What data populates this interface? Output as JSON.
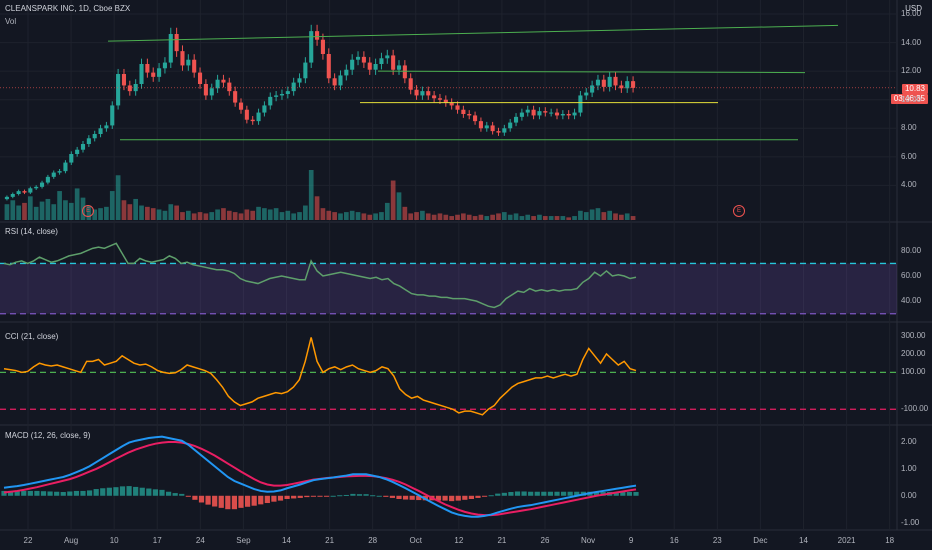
{
  "header": {
    "symbol": "CLEANSPARK INC, 1D, Cboe BZX",
    "vol": "Vol",
    "currency": "USD",
    "price_tag": "10.83",
    "time_tag": "03:46:35"
  },
  "panes": {
    "rsi_title": "RSI (14, close)",
    "cci_title": "CCI (21, close)",
    "macd_title": "MACD (12, 26, close, 9)"
  },
  "markers": {
    "earnings1": "E",
    "earnings2": "E"
  },
  "colors": {
    "background": "#131722",
    "up": "#26a69a",
    "down": "#ef5350",
    "support": "#4caf50",
    "yellow_line": "#e5e03a",
    "rsi": "#5e9f6b",
    "rsi_band": "#7e57c2",
    "rsi_upper": "#26c6da",
    "cci": "#ff9800",
    "cci_upper": "#4caf50",
    "cci_lower": "#e91e63",
    "macd": "#2196f3",
    "signal": "#e91e63"
  },
  "chart_data": [
    {
      "type": "candlestick",
      "title": "CLEANSPARK INC, 1D, Cboe BZX",
      "y_ticks": [
        "4.00",
        "6.00",
        "8.00",
        "10.00",
        "12.00",
        "14.00",
        "16.00"
      ],
      "ylim": [
        2,
        16
      ],
      "x_ticks": [
        "22",
        "Aug",
        "10",
        "17",
        "24",
        "Sep",
        "14",
        "21",
        "28",
        "Oct",
        "12",
        "21",
        "26",
        "Nov",
        "9",
        "16",
        "23",
        "Dec",
        "14",
        "2021",
        "18"
      ],
      "last_price": 10.83,
      "close": [
        3.2,
        3.4,
        3.6,
        3.5,
        3.8,
        3.9,
        4.2,
        4.6,
        4.9,
        5.0,
        5.6,
        6.2,
        6.5,
        6.9,
        7.3,
        7.6,
        8.0,
        8.2,
        9.6,
        11.8,
        11.0,
        10.6,
        11.1,
        12.5,
        11.9,
        11.6,
        12.2,
        12.6,
        14.6,
        13.4,
        12.4,
        12.8,
        11.9,
        11.1,
        10.3,
        10.8,
        11.4,
        11.2,
        10.6,
        9.8,
        9.3,
        8.6,
        8.5,
        9.1,
        9.6,
        10.2,
        10.3,
        10.4,
        10.6,
        11.2,
        11.5,
        12.6,
        14.8,
        14.2,
        13.2,
        11.5,
        11.0,
        11.7,
        12.1,
        12.8,
        13.0,
        12.6,
        12.1,
        12.5,
        12.9,
        13.1,
        12.1,
        12.4,
        11.5,
        10.7,
        10.3,
        10.6,
        10.3,
        10.1,
        10.0,
        9.8,
        9.6,
        9.3,
        9.0,
        8.9,
        8.5,
        8.0,
        8.2,
        7.8,
        7.7,
        8.0,
        8.4,
        8.8,
        9.1,
        9.3,
        8.9,
        9.2,
        9.1,
        9.1,
        8.9,
        9.0,
        8.9,
        9.1,
        10.3,
        10.5,
        11.0,
        11.4,
        10.9,
        11.6,
        11.0,
        10.8,
        11.3,
        10.83
      ],
      "volume": [
        1.2,
        1.5,
        1.1,
        1.3,
        1.8,
        1.0,
        1.4,
        1.6,
        1.2,
        2.2,
        1.5,
        1.3,
        2.4,
        1.7,
        1.1,
        0.8,
        0.9,
        1.0,
        2.2,
        3.4,
        1.5,
        1.2,
        1.6,
        1.1,
        1.0,
        0.9,
        0.8,
        0.7,
        1.2,
        1.1,
        0.6,
        0.7,
        0.5,
        0.6,
        0.5,
        0.6,
        0.8,
        0.9,
        0.7,
        0.6,
        0.5,
        0.8,
        0.7,
        1.0,
        0.9,
        0.8,
        0.9,
        0.6,
        0.7,
        0.5,
        0.6,
        1.1,
        3.8,
        1.8,
        0.9,
        0.7,
        0.6,
        0.5,
        0.6,
        0.7,
        0.6,
        0.5,
        0.4,
        0.5,
        0.6,
        1.3,
        3.0,
        2.1,
        1.0,
        0.5,
        0.6,
        0.7,
        0.5,
        0.4,
        0.5,
        0.4,
        0.3,
        0.4,
        0.5,
        0.4,
        0.3,
        0.4,
        0.3,
        0.4,
        0.5,
        0.6,
        0.4,
        0.5,
        0.3,
        0.4,
        0.3,
        0.4,
        0.3,
        0.3,
        0.3,
        0.3,
        0.2,
        0.3,
        0.7,
        0.6,
        0.8,
        0.9,
        0.6,
        0.7,
        0.5,
        0.4,
        0.5,
        0.3
      ],
      "lines": [
        {
          "from": 14.1,
          "to": 15.2,
          "color": "green"
        },
        {
          "from": 12.0,
          "to": 11.9,
          "color": "green"
        },
        {
          "from": 9.8,
          "to": 9.8,
          "color": "yellow"
        },
        {
          "from": 7.2,
          "to": 7.2,
          "color": "green"
        }
      ]
    },
    {
      "type": "line",
      "title": "RSI (14, close)",
      "y_ticks": [
        "40.00",
        "60.00",
        "80.00"
      ],
      "ylim": [
        25,
        95
      ],
      "levels": [
        70,
        30
      ],
      "values": [
        70,
        69,
        71,
        72,
        70,
        72,
        75,
        73,
        71,
        72,
        74,
        76,
        77,
        78,
        80,
        82,
        83,
        82,
        84,
        86,
        78,
        70,
        70,
        74,
        72,
        71,
        72,
        73,
        76,
        74,
        70,
        71,
        69,
        68,
        67,
        66,
        65,
        65,
        64,
        62,
        58,
        56,
        55,
        54,
        56,
        58,
        59,
        60,
        59,
        58,
        57,
        57,
        72,
        64,
        60,
        61,
        62,
        63,
        62,
        61,
        60,
        59,
        58,
        59,
        57,
        58,
        54,
        52,
        49,
        46,
        45,
        45,
        44,
        44,
        43,
        43,
        42,
        42,
        42,
        41,
        40,
        38,
        36,
        35,
        37,
        42,
        45,
        48,
        47,
        50,
        48,
        49,
        48,
        49,
        48,
        49,
        49,
        50,
        55,
        58,
        63,
        60,
        64,
        60,
        61,
        60,
        58,
        59
      ]
    },
    {
      "type": "line",
      "title": "CCI (21, close)",
      "y_ticks": [
        "-100.00",
        "100.00",
        "200.00",
        "300.00"
      ],
      "ylim": [
        -180,
        330
      ],
      "levels": [
        100,
        -100
      ],
      "values": [
        120,
        115,
        110,
        100,
        105,
        130,
        150,
        140,
        135,
        140,
        130,
        120,
        110,
        100,
        160,
        160,
        170,
        140,
        150,
        160,
        190,
        170,
        150,
        140,
        145,
        130,
        110,
        100,
        95,
        98,
        115,
        140,
        130,
        120,
        110,
        95,
        60,
        20,
        -30,
        -60,
        -80,
        -70,
        -60,
        -40,
        -30,
        -20,
        -10,
        -15,
        -5,
        20,
        60,
        160,
        290,
        160,
        100,
        120,
        130,
        115,
        130,
        140,
        120,
        110,
        100,
        110,
        130,
        120,
        80,
        10,
        -20,
        -40,
        -30,
        -50,
        -60,
        -70,
        -80,
        -90,
        -100,
        -120,
        -110,
        -110,
        -120,
        -130,
        -100,
        -80,
        -40,
        -10,
        20,
        40,
        50,
        60,
        70,
        70,
        80,
        70,
        80,
        90,
        80,
        90,
        170,
        230,
        190,
        150,
        200,
        170,
        140,
        160,
        120,
        110
      ]
    },
    {
      "type": "line",
      "title": "MACD (12, 26, close, 9)",
      "y_ticks": [
        "-1.00",
        "0.00",
        "1.00",
        "2.00"
      ],
      "ylim": [
        -1.2,
        2.3
      ],
      "series": [
        {
          "values": [
            0.3,
            0.33,
            0.36,
            0.4,
            0.45,
            0.5,
            0.55,
            0.6,
            0.65,
            0.7,
            0.78,
            0.88,
            0.98,
            1.1,
            1.25,
            1.4,
            1.55,
            1.7,
            1.85,
            1.98,
            2.05,
            2.1,
            2.15,
            2.18,
            2.2,
            2.15,
            2.1,
            2.05,
            1.9,
            1.7,
            1.5,
            1.3,
            1.1,
            0.9,
            0.7,
            0.55,
            0.45,
            0.35,
            0.25,
            0.18,
            0.15,
            0.16,
            0.2,
            0.28,
            0.35,
            0.42,
            0.5,
            0.58,
            0.62,
            0.65,
            0.68,
            0.72,
            0.75,
            0.8,
            0.8,
            0.8,
            0.75,
            0.7,
            0.62,
            0.52,
            0.4,
            0.28,
            0.15,
            0.02,
            -0.12,
            -0.25,
            -0.38,
            -0.5,
            -0.62,
            -0.7,
            -0.75,
            -0.78,
            -0.78,
            -0.75,
            -0.7,
            -0.62,
            -0.55,
            -0.48,
            -0.42,
            -0.38,
            -0.35,
            -0.3,
            -0.25,
            -0.2,
            -0.15,
            -0.1,
            -0.05,
            0.0,
            0.05,
            0.1,
            0.14,
            0.18,
            0.22,
            0.26,
            0.3,
            0.34,
            0.38
          ]
        },
        {
          "values": [
            0.12,
            0.15,
            0.18,
            0.22,
            0.27,
            0.32,
            0.38,
            0.44,
            0.5,
            0.56,
            0.62,
            0.7,
            0.8,
            0.9,
            1.0,
            1.12,
            1.25,
            1.38,
            1.5,
            1.62,
            1.72,
            1.8,
            1.88,
            1.94,
            1.98,
            2.0,
            2.0,
            1.98,
            1.93,
            1.85,
            1.75,
            1.63,
            1.5,
            1.35,
            1.2,
            1.05,
            0.9,
            0.76,
            0.62,
            0.5,
            0.42,
            0.38,
            0.38,
            0.4,
            0.45,
            0.5,
            0.55,
            0.6,
            0.63,
            0.66,
            0.68,
            0.7,
            0.72,
            0.73,
            0.74,
            0.74,
            0.73,
            0.7,
            0.66,
            0.6,
            0.52,
            0.42,
            0.3,
            0.18,
            0.05,
            -0.08,
            -0.2,
            -0.32,
            -0.42,
            -0.52,
            -0.6,
            -0.66,
            -0.7,
            -0.72,
            -0.72,
            -0.7,
            -0.66,
            -0.62,
            -0.58,
            -0.54,
            -0.5,
            -0.45,
            -0.4,
            -0.35,
            -0.3,
            -0.25,
            -0.2,
            -0.15,
            -0.1,
            -0.05,
            0.0,
            0.04,
            0.08,
            0.12,
            0.16,
            0.2,
            0.24
          ]
        }
      ]
    }
  ]
}
